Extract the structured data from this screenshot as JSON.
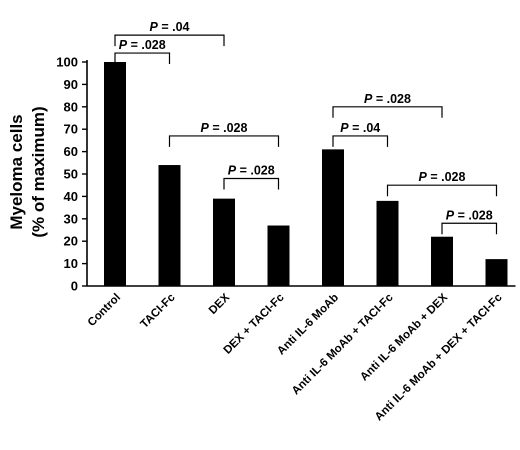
{
  "chart_data": {
    "type": "bar",
    "title": "",
    "xlabel": "",
    "ylabel_line1": "Myeloma cells",
    "ylabel_line2": "(% of maximum)",
    "ylim": [
      0,
      100
    ],
    "yticks": [
      0,
      10,
      20,
      30,
      40,
      50,
      60,
      70,
      80,
      90,
      100
    ],
    "grid": false,
    "legend": "none",
    "bar_color": "#000000",
    "categories": [
      "Control",
      "TACI-Fc",
      "DEX",
      "DEX + TACI-Fc",
      "Anti IL-6 MoAb",
      "Anti IL-6 MoAb + TACI-Fc",
      "Anti IL-6 MoAb + DEX",
      "Anti IL-6 MoAb + DEX + TACI-Fc"
    ],
    "values": [
      100,
      54,
      39,
      27,
      61,
      38,
      22,
      12
    ],
    "annotations": [
      {
        "from": 0,
        "to": 2,
        "italic": "P",
        "rest": " = .04",
        "level": 112
      },
      {
        "from": 0,
        "to": 1,
        "italic": "P",
        "rest": " = .028",
        "level": 104
      },
      {
        "from": 1,
        "to": 3,
        "italic": "P",
        "rest": " = .028",
        "level": 67
      },
      {
        "from": 2,
        "to": 3,
        "italic": "P",
        "rest": " = .028",
        "level": 48
      },
      {
        "from": 4,
        "to": 6,
        "italic": "P",
        "rest": " = .028",
        "level": 80
      },
      {
        "from": 4,
        "to": 5,
        "italic": "P",
        "rest": " = .04",
        "level": 67
      },
      {
        "from": 5,
        "to": 7,
        "italic": "P",
        "rest": " = .028",
        "level": 45
      },
      {
        "from": 6,
        "to": 7,
        "italic": "P",
        "rest": " = .028",
        "level": 28
      }
    ]
  }
}
